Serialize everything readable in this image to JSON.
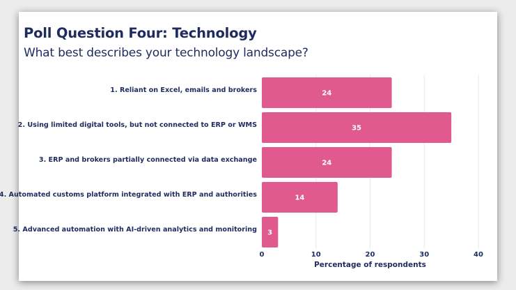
{
  "slide": {
    "title": "Poll Question Four: Technology",
    "subtitle": "What best describes your technology landscape?"
  },
  "chart_data": {
    "type": "bar",
    "orientation": "horizontal",
    "categories": [
      "1. Reliant on Excel, emails and brokers",
      "2. Using limited digital tools, but not connected to ERP or WMS",
      "3. ERP and brokers partially connected via data exchange",
      "4. Automated customs platform integrated with ERP and authorities",
      "5. Advanced automation with AI-driven analytics and monitoring"
    ],
    "values": [
      24,
      35,
      24,
      14,
      3
    ],
    "xlabel": "Percentage of respondents",
    "ylabel": "",
    "xlim": [
      0,
      40
    ],
    "xticks": [
      0,
      10,
      20,
      30,
      40
    ],
    "grid": "vertical",
    "data_labels": true,
    "bar_color": "#e05a8f",
    "text_color": "#1e2b5e"
  }
}
